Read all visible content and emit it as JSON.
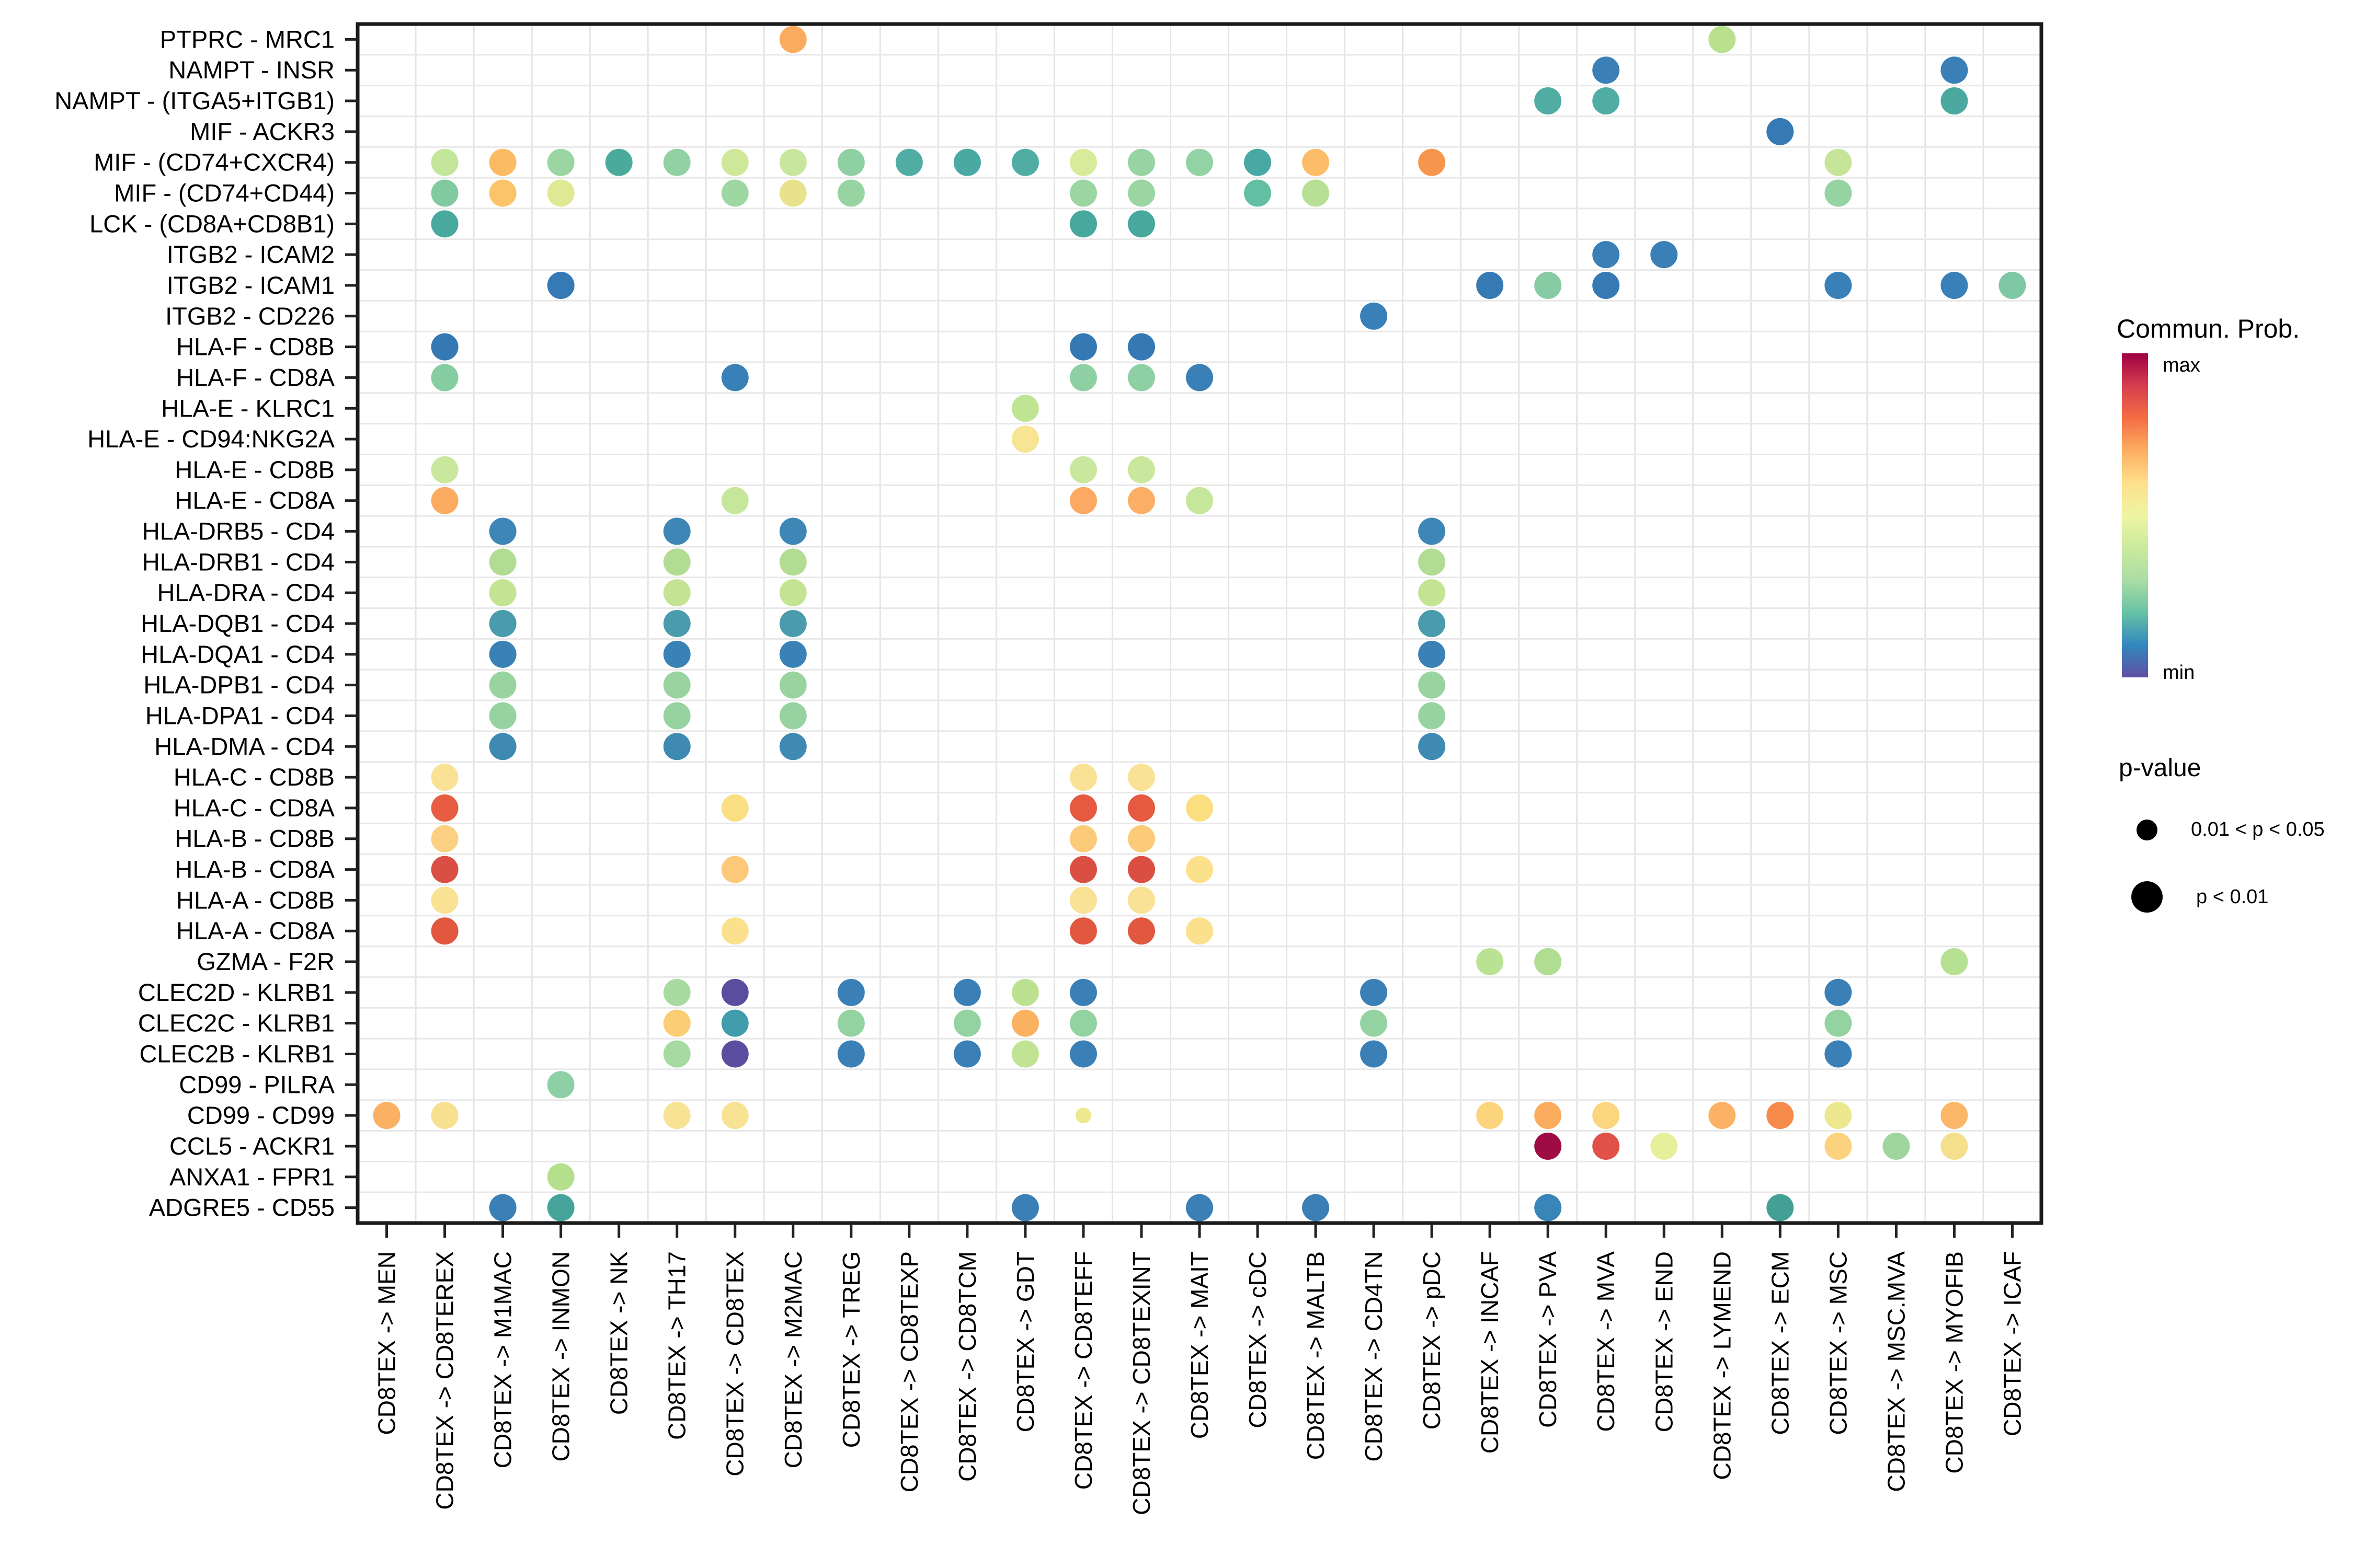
{
  "chart_data": {
    "type": "scatter",
    "subtype": "dot-plot-cell-communication",
    "title": "",
    "xlabel": "",
    "ylabel": "",
    "grid": "on",
    "x_categories": [
      "CD8TEX -> MEN",
      "CD8TEX -> CD8TEREX",
      "CD8TEX -> M1MAC",
      "CD8TEX -> INMON",
      "CD8TEX -> NK",
      "CD8TEX -> TH17",
      "CD8TEX -> CD8TEX",
      "CD8TEX -> M2MAC",
      "CD8TEX -> TREG",
      "CD8TEX -> CD8TEXP",
      "CD8TEX -> CD8TCM",
      "CD8TEX -> GDT",
      "CD8TEX -> CD8TEFF",
      "CD8TEX -> CD8TEXINT",
      "CD8TEX -> MAIT",
      "CD8TEX -> cDC",
      "CD8TEX -> MALTB",
      "CD8TEX -> CD4TN",
      "CD8TEX -> pDC",
      "CD8TEX -> INCAF",
      "CD8TEX -> PVA",
      "CD8TEX -> MVA",
      "CD8TEX -> END",
      "CD8TEX -> LYMEND",
      "CD8TEX -> ECM",
      "CD8TEX -> MSC",
      "CD8TEX -> MSC.MVA",
      "CD8TEX -> MYOFIB",
      "CD8TEX -> ICAF"
    ],
    "y_categories": [
      "PTPRC - MRC1",
      "NAMPT - INSR",
      "NAMPT - (ITGA5+ITGB1)",
      "MIF - ACKR3",
      "MIF - (CD74+CXCR4)",
      "MIF - (CD74+CD44)",
      "LCK - (CD8A+CD8B1)",
      "ITGB2 - ICAM2",
      "ITGB2 - ICAM1",
      "ITGB2 - CD226",
      "HLA-F - CD8B",
      "HLA-F - CD8A",
      "HLA-E - KLRC1",
      "HLA-E - CD94:NKG2A",
      "HLA-E - CD8B",
      "HLA-E - CD8A",
      "HLA-DRB5 - CD4",
      "HLA-DRB1 - CD4",
      "HLA-DRA - CD4",
      "HLA-DQB1 - CD4",
      "HLA-DQA1 - CD4",
      "HLA-DPB1 - CD4",
      "HLA-DPA1 - CD4",
      "HLA-DMA - CD4",
      "HLA-C - CD8B",
      "HLA-C - CD8A",
      "HLA-B - CD8B",
      "HLA-B - CD8A",
      "HLA-A - CD8B",
      "HLA-A - CD8A",
      "GZMA - F2R",
      "CLEC2D - KLRB1",
      "CLEC2C - KLRB1",
      "CLEC2B - KLRB1",
      "CD99 - PILRA",
      "CD99 - CD99",
      "CCL5 - ACKR1",
      "ANXA1 - FPR1",
      "ADGRE5 - CD55"
    ],
    "legend": {
      "color_title": "Commun. Prob.",
      "color_max_label": "max",
      "color_min_label": "min",
      "gradient": [
        "#9e0142",
        "#d53e4f",
        "#f46d43",
        "#fdae61",
        "#fee08b",
        "#eef5a3",
        "#cbea9d",
        "#abdda4",
        "#66c2a5",
        "#3288bd",
        "#5e4fa2"
      ],
      "size_title": "p-value",
      "size_items": [
        {
          "label": "0.01 < p < 0.05",
          "size": "small"
        },
        {
          "label": "p < 0.01",
          "size": "large"
        }
      ]
    },
    "size_encoding": {
      "large": "p < 0.01",
      "small": "0.01 < p < 0.05"
    },
    "points": [
      {
        "r": 1,
        "c": 8,
        "col": "#fbab5e"
      },
      {
        "r": 1,
        "c": 24,
        "col": "#b8e08d"
      },
      {
        "r": 2,
        "c": 22,
        "col": "#3a7fb5"
      },
      {
        "r": 2,
        "c": 28,
        "col": "#3a7fb5"
      },
      {
        "r": 3,
        "c": 21,
        "col": "#4fada4"
      },
      {
        "r": 3,
        "c": 22,
        "col": "#4fada4"
      },
      {
        "r": 3,
        "c": 28,
        "col": "#4aa89f"
      },
      {
        "r": 4,
        "c": 25,
        "col": "#3579b5"
      },
      {
        "r": 5,
        "c": 2,
        "col": "#c3e69b"
      },
      {
        "r": 5,
        "c": 3,
        "col": "#fbbb64"
      },
      {
        "r": 5,
        "c": 4,
        "col": "#9bd5a2"
      },
      {
        "r": 5,
        "c": 5,
        "col": "#4aab9d"
      },
      {
        "r": 5,
        "c": 6,
        "col": "#92d1a3"
      },
      {
        "r": 5,
        "c": 7,
        "col": "#cfe798"
      },
      {
        "r": 5,
        "c": 8,
        "col": "#c8e69c"
      },
      {
        "r": 5,
        "c": 9,
        "col": "#8fd0a3"
      },
      {
        "r": 5,
        "c": 10,
        "col": "#4fada4"
      },
      {
        "r": 5,
        "c": 11,
        "col": "#4aa9a2"
      },
      {
        "r": 5,
        "c": 12,
        "col": "#4fada4"
      },
      {
        "r": 5,
        "c": 13,
        "col": "#d8eb9b"
      },
      {
        "r": 5,
        "c": 14,
        "col": "#97d4a3"
      },
      {
        "r": 5,
        "c": 15,
        "col": "#93d2a3"
      },
      {
        "r": 5,
        "c": 16,
        "col": "#47a8a4"
      },
      {
        "r": 5,
        "c": 17,
        "col": "#fbbd68"
      },
      {
        "r": 5,
        "c": 19,
        "col": "#f8954c"
      },
      {
        "r": 5,
        "c": 26,
        "col": "#c6e599"
      },
      {
        "r": 6,
        "c": 2,
        "col": "#81c99f"
      },
      {
        "r": 6,
        "c": 3,
        "col": "#fbc46a"
      },
      {
        "r": 6,
        "c": 4,
        "col": "#dfe994"
      },
      {
        "r": 6,
        "c": 7,
        "col": "#9fd7a3"
      },
      {
        "r": 6,
        "c": 8,
        "col": "#e9e28c"
      },
      {
        "r": 6,
        "c": 9,
        "col": "#98d4a1"
      },
      {
        "r": 6,
        "c": 13,
        "col": "#9ad5a2"
      },
      {
        "r": 6,
        "c": 14,
        "col": "#9ad5a2"
      },
      {
        "r": 6,
        "c": 16,
        "col": "#63bfa3"
      },
      {
        "r": 6,
        "c": 17,
        "col": "#b7e095"
      },
      {
        "r": 6,
        "c": 26,
        "col": "#96d3a3"
      },
      {
        "r": 7,
        "c": 2,
        "col": "#4aa99e"
      },
      {
        "r": 7,
        "c": 13,
        "col": "#47a89d"
      },
      {
        "r": 7,
        "c": 14,
        "col": "#47a89d"
      },
      {
        "r": 8,
        "c": 22,
        "col": "#3a7fb5"
      },
      {
        "r": 8,
        "c": 23,
        "col": "#3a7fb5"
      },
      {
        "r": 9,
        "c": 4,
        "col": "#3579b5"
      },
      {
        "r": 9,
        "c": 20,
        "col": "#3579b5"
      },
      {
        "r": 9,
        "c": 21,
        "col": "#86cba4"
      },
      {
        "r": 9,
        "c": 22,
        "col": "#3579b5"
      },
      {
        "r": 9,
        "c": 26,
        "col": "#3880b7"
      },
      {
        "r": 9,
        "c": 28,
        "col": "#3880b7"
      },
      {
        "r": 9,
        "c": 29,
        "col": "#7ec7a5"
      },
      {
        "r": 10,
        "c": 18,
        "col": "#3880b7"
      },
      {
        "r": 11,
        "c": 2,
        "col": "#3478b4"
      },
      {
        "r": 11,
        "c": 13,
        "col": "#3478b4"
      },
      {
        "r": 11,
        "c": 14,
        "col": "#3478b4"
      },
      {
        "r": 12,
        "c": 2,
        "col": "#87cda2"
      },
      {
        "r": 12,
        "c": 7,
        "col": "#3880b7"
      },
      {
        "r": 12,
        "c": 13,
        "col": "#8ed0a3"
      },
      {
        "r": 12,
        "c": 14,
        "col": "#8ed0a3"
      },
      {
        "r": 12,
        "c": 15,
        "col": "#3880b7"
      },
      {
        "r": 13,
        "c": 12,
        "col": "#bfe494"
      },
      {
        "r": 14,
        "c": 12,
        "col": "#f7e593"
      },
      {
        "r": 15,
        "c": 2,
        "col": "#c9e79d"
      },
      {
        "r": 15,
        "c": 13,
        "col": "#c9e79d"
      },
      {
        "r": 15,
        "c": 14,
        "col": "#c9e79d"
      },
      {
        "r": 16,
        "c": 2,
        "col": "#fbab5f"
      },
      {
        "r": 16,
        "c": 7,
        "col": "#c6e69b"
      },
      {
        "r": 16,
        "c": 13,
        "col": "#fba963"
      },
      {
        "r": 16,
        "c": 14,
        "col": "#fbaf66"
      },
      {
        "r": 16,
        "c": 15,
        "col": "#c6e69b"
      },
      {
        "r": 17,
        "c": 3,
        "col": "#3e86b5"
      },
      {
        "r": 17,
        "c": 6,
        "col": "#3e86b5"
      },
      {
        "r": 17,
        "c": 8,
        "col": "#3e86b5"
      },
      {
        "r": 17,
        "c": 19,
        "col": "#3e86b5"
      },
      {
        "r": 18,
        "c": 3,
        "col": "#b2dc94"
      },
      {
        "r": 18,
        "c": 6,
        "col": "#b2dc94"
      },
      {
        "r": 18,
        "c": 8,
        "col": "#b2dc94"
      },
      {
        "r": 18,
        "c": 19,
        "col": "#b2dc94"
      },
      {
        "r": 19,
        "c": 3,
        "col": "#c4e393"
      },
      {
        "r": 19,
        "c": 6,
        "col": "#c4e393"
      },
      {
        "r": 19,
        "c": 8,
        "col": "#c4e393"
      },
      {
        "r": 19,
        "c": 19,
        "col": "#c4e393"
      },
      {
        "r": 20,
        "c": 3,
        "col": "#4a9bab"
      },
      {
        "r": 20,
        "c": 6,
        "col": "#4a9bab"
      },
      {
        "r": 20,
        "c": 8,
        "col": "#4a9bab"
      },
      {
        "r": 20,
        "c": 19,
        "col": "#4a9bab"
      },
      {
        "r": 21,
        "c": 3,
        "col": "#3a82b5"
      },
      {
        "r": 21,
        "c": 6,
        "col": "#3a82b5"
      },
      {
        "r": 21,
        "c": 8,
        "col": "#3a82b5"
      },
      {
        "r": 21,
        "c": 19,
        "col": "#3a82b5"
      },
      {
        "r": 22,
        "c": 3,
        "col": "#99d4a0"
      },
      {
        "r": 22,
        "c": 6,
        "col": "#99d4a0"
      },
      {
        "r": 22,
        "c": 8,
        "col": "#99d4a0"
      },
      {
        "r": 22,
        "c": 19,
        "col": "#99d4a0"
      },
      {
        "r": 23,
        "c": 3,
        "col": "#97d3a0"
      },
      {
        "r": 23,
        "c": 6,
        "col": "#97d3a0"
      },
      {
        "r": 23,
        "c": 8,
        "col": "#97d3a0"
      },
      {
        "r": 23,
        "c": 19,
        "col": "#97d3a0"
      },
      {
        "r": 24,
        "c": 3,
        "col": "#3e8ab3"
      },
      {
        "r": 24,
        "c": 6,
        "col": "#3e8ab3"
      },
      {
        "r": 24,
        "c": 8,
        "col": "#3e8ab3"
      },
      {
        "r": 24,
        "c": 19,
        "col": "#3e8ab3"
      },
      {
        "r": 25,
        "c": 2,
        "col": "#f9e296"
      },
      {
        "r": 25,
        "c": 13,
        "col": "#f9e295"
      },
      {
        "r": 25,
        "c": 14,
        "col": "#f9e295"
      },
      {
        "r": 26,
        "c": 2,
        "col": "#e85c41"
      },
      {
        "r": 26,
        "c": 7,
        "col": "#fade82"
      },
      {
        "r": 26,
        "c": 13,
        "col": "#e65a42"
      },
      {
        "r": 26,
        "c": 14,
        "col": "#e65a42"
      },
      {
        "r": 26,
        "c": 15,
        "col": "#fade82"
      },
      {
        "r": 27,
        "c": 2,
        "col": "#fbd083"
      },
      {
        "r": 27,
        "c": 13,
        "col": "#fbcb79"
      },
      {
        "r": 27,
        "c": 14,
        "col": "#fbcb79"
      },
      {
        "r": 28,
        "c": 2,
        "col": "#d94f43"
      },
      {
        "r": 28,
        "c": 7,
        "col": "#fcc97b"
      },
      {
        "r": 28,
        "c": 13,
        "col": "#da4f42"
      },
      {
        "r": 28,
        "c": 14,
        "col": "#da4f42"
      },
      {
        "r": 28,
        "c": 15,
        "col": "#fce18c"
      },
      {
        "r": 29,
        "c": 2,
        "col": "#fae294"
      },
      {
        "r": 29,
        "c": 13,
        "col": "#f9e295"
      },
      {
        "r": 29,
        "c": 14,
        "col": "#f9e295"
      },
      {
        "r": 30,
        "c": 2,
        "col": "#e2573f"
      },
      {
        "r": 30,
        "c": 7,
        "col": "#fbe08d"
      },
      {
        "r": 30,
        "c": 13,
        "col": "#e2573f"
      },
      {
        "r": 30,
        "c": 14,
        "col": "#e2573f"
      },
      {
        "r": 30,
        "c": 15,
        "col": "#fbe08d"
      },
      {
        "r": 31,
        "c": 20,
        "col": "#b9e293"
      },
      {
        "r": 31,
        "c": 21,
        "col": "#b0dd92"
      },
      {
        "r": 31,
        "c": 28,
        "col": "#b7e192"
      },
      {
        "r": 32,
        "c": 6,
        "col": "#a8dba0"
      },
      {
        "r": 32,
        "c": 7,
        "col": "#5a4c9e"
      },
      {
        "r": 32,
        "c": 9,
        "col": "#3a80b6"
      },
      {
        "r": 32,
        "c": 11,
        "col": "#3a80b6"
      },
      {
        "r": 32,
        "c": 12,
        "col": "#bce291"
      },
      {
        "r": 32,
        "c": 13,
        "col": "#3a80b6"
      },
      {
        "r": 32,
        "c": 18,
        "col": "#3a80b6"
      },
      {
        "r": 32,
        "c": 26,
        "col": "#3a80b6"
      },
      {
        "r": 33,
        "c": 6,
        "col": "#fbcd74"
      },
      {
        "r": 33,
        "c": 7,
        "col": "#419dab"
      },
      {
        "r": 33,
        "c": 9,
        "col": "#93d2a1"
      },
      {
        "r": 33,
        "c": 11,
        "col": "#93d2a1"
      },
      {
        "r": 33,
        "c": 12,
        "col": "#fbb260"
      },
      {
        "r": 33,
        "c": 13,
        "col": "#93d2a1"
      },
      {
        "r": 33,
        "c": 18,
        "col": "#93d2a1"
      },
      {
        "r": 33,
        "c": 26,
        "col": "#93d2a1"
      },
      {
        "r": 34,
        "c": 6,
        "col": "#a6daa0"
      },
      {
        "r": 34,
        "c": 7,
        "col": "#5a4c9e"
      },
      {
        "r": 34,
        "c": 9,
        "col": "#3a80b6"
      },
      {
        "r": 34,
        "c": 11,
        "col": "#3a80b6"
      },
      {
        "r": 34,
        "c": 12,
        "col": "#c0e494"
      },
      {
        "r": 34,
        "c": 13,
        "col": "#3a80b6"
      },
      {
        "r": 34,
        "c": 18,
        "col": "#3a80b6"
      },
      {
        "r": 34,
        "c": 26,
        "col": "#3a80b6"
      },
      {
        "r": 35,
        "c": 4,
        "col": "#8ed0a5"
      },
      {
        "r": 36,
        "c": 1,
        "col": "#fbb164"
      },
      {
        "r": 36,
        "c": 2,
        "col": "#f8e091"
      },
      {
        "r": 36,
        "c": 6,
        "col": "#f8e294"
      },
      {
        "r": 36,
        "c": 7,
        "col": "#f8e294"
      },
      {
        "r": 36,
        "c": 13,
        "col": "#eee88f",
        "sm": true
      },
      {
        "r": 36,
        "c": 20,
        "col": "#fbd47c"
      },
      {
        "r": 36,
        "c": 21,
        "col": "#fbad5f"
      },
      {
        "r": 36,
        "c": 22,
        "col": "#fbd67e"
      },
      {
        "r": 36,
        "c": 24,
        "col": "#fbb264"
      },
      {
        "r": 36,
        "c": 25,
        "col": "#f58a4a"
      },
      {
        "r": 36,
        "c": 26,
        "col": "#ede88f"
      },
      {
        "r": 36,
        "c": 28,
        "col": "#fbb667"
      },
      {
        "r": 37,
        "c": 21,
        "col": "#9e0c43"
      },
      {
        "r": 37,
        "c": 22,
        "col": "#e0514a"
      },
      {
        "r": 37,
        "c": 23,
        "col": "#e6f09b"
      },
      {
        "r": 37,
        "c": 26,
        "col": "#fbd27e"
      },
      {
        "r": 37,
        "c": 27,
        "col": "#a0d69e"
      },
      {
        "r": 37,
        "c": 28,
        "col": "#f4e08c"
      },
      {
        "r": 38,
        "c": 4,
        "col": "#b4e08e"
      },
      {
        "r": 39,
        "c": 3,
        "col": "#3a80b6"
      },
      {
        "r": 39,
        "c": 4,
        "col": "#47a49a"
      },
      {
        "r": 39,
        "c": 12,
        "col": "#3a80b6"
      },
      {
        "r": 39,
        "c": 15,
        "col": "#3a80b6"
      },
      {
        "r": 39,
        "c": 17,
        "col": "#3a80b6"
      },
      {
        "r": 39,
        "c": 21,
        "col": "#3a85b8"
      },
      {
        "r": 39,
        "c": 25,
        "col": "#42a095"
      }
    ]
  }
}
